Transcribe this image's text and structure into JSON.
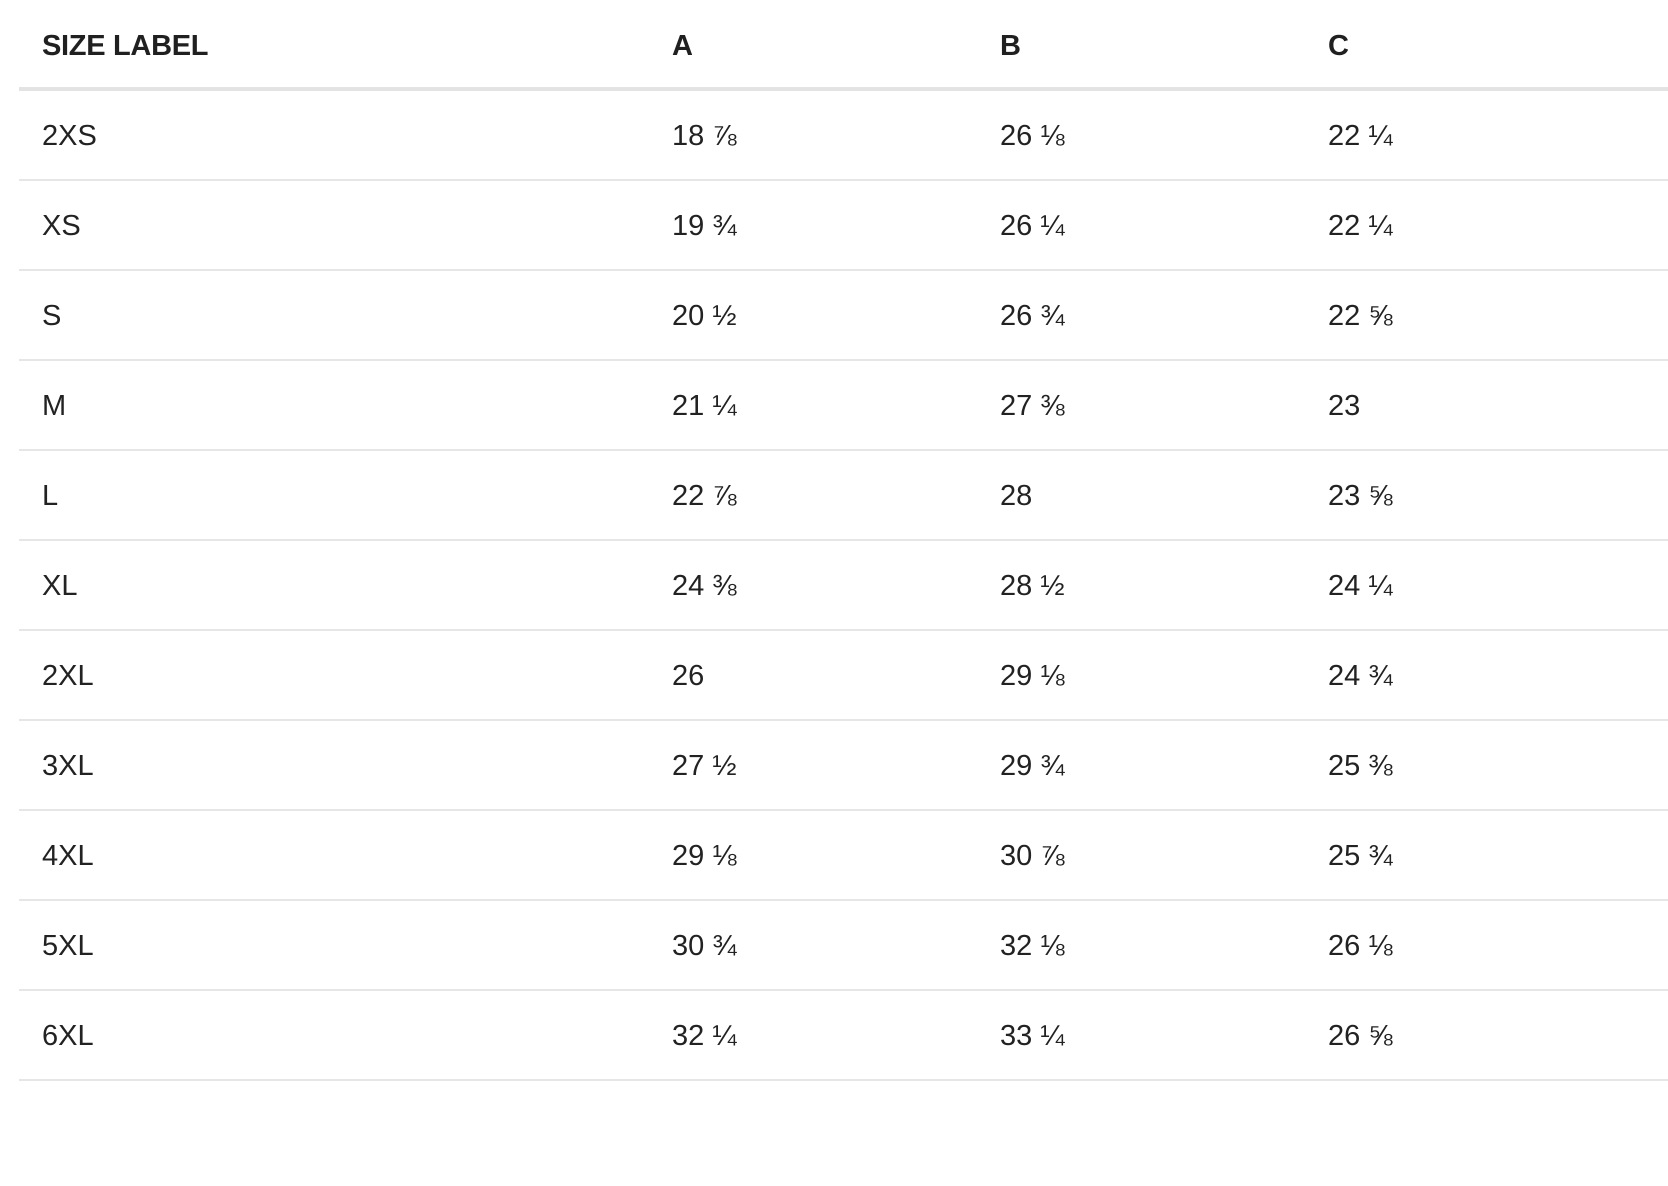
{
  "table": {
    "headers": {
      "size_label": "SIZE LABEL",
      "a": "A",
      "b": "B",
      "c": "C"
    },
    "rows": [
      {
        "size": "2XS",
        "a": "18 ⅞",
        "b": "26 ⅛",
        "c": "22 ¼"
      },
      {
        "size": "XS",
        "a": "19 ¾",
        "b": "26 ¼",
        "c": "22 ¼"
      },
      {
        "size": "S",
        "a": "20 ½",
        "b": "26 ¾",
        "c": "22 ⅝"
      },
      {
        "size": "M",
        "a": "21 ¼",
        "b": "27 ⅜",
        "c": "23"
      },
      {
        "size": "L",
        "a": "22 ⅞",
        "b": "28",
        "c": "23 ⅝"
      },
      {
        "size": "XL",
        "a": "24 ⅜",
        "b": "28 ½",
        "c": "24 ¼"
      },
      {
        "size": "2XL",
        "a": "26",
        "b": "29 ⅛",
        "c": "24 ¾"
      },
      {
        "size": "3XL",
        "a": "27 ½",
        "b": "29 ¾",
        "c": "25 ⅜"
      },
      {
        "size": "4XL",
        "a": "29 ⅛",
        "b": "30 ⅞",
        "c": "25 ¾"
      },
      {
        "size": "5XL",
        "a": "30 ¾",
        "b": "32 ⅛",
        "c": "26 ⅛"
      },
      {
        "size": "6XL",
        "a": "32 ¼",
        "b": "33 ¼",
        "c": "26 ⅝"
      }
    ]
  }
}
